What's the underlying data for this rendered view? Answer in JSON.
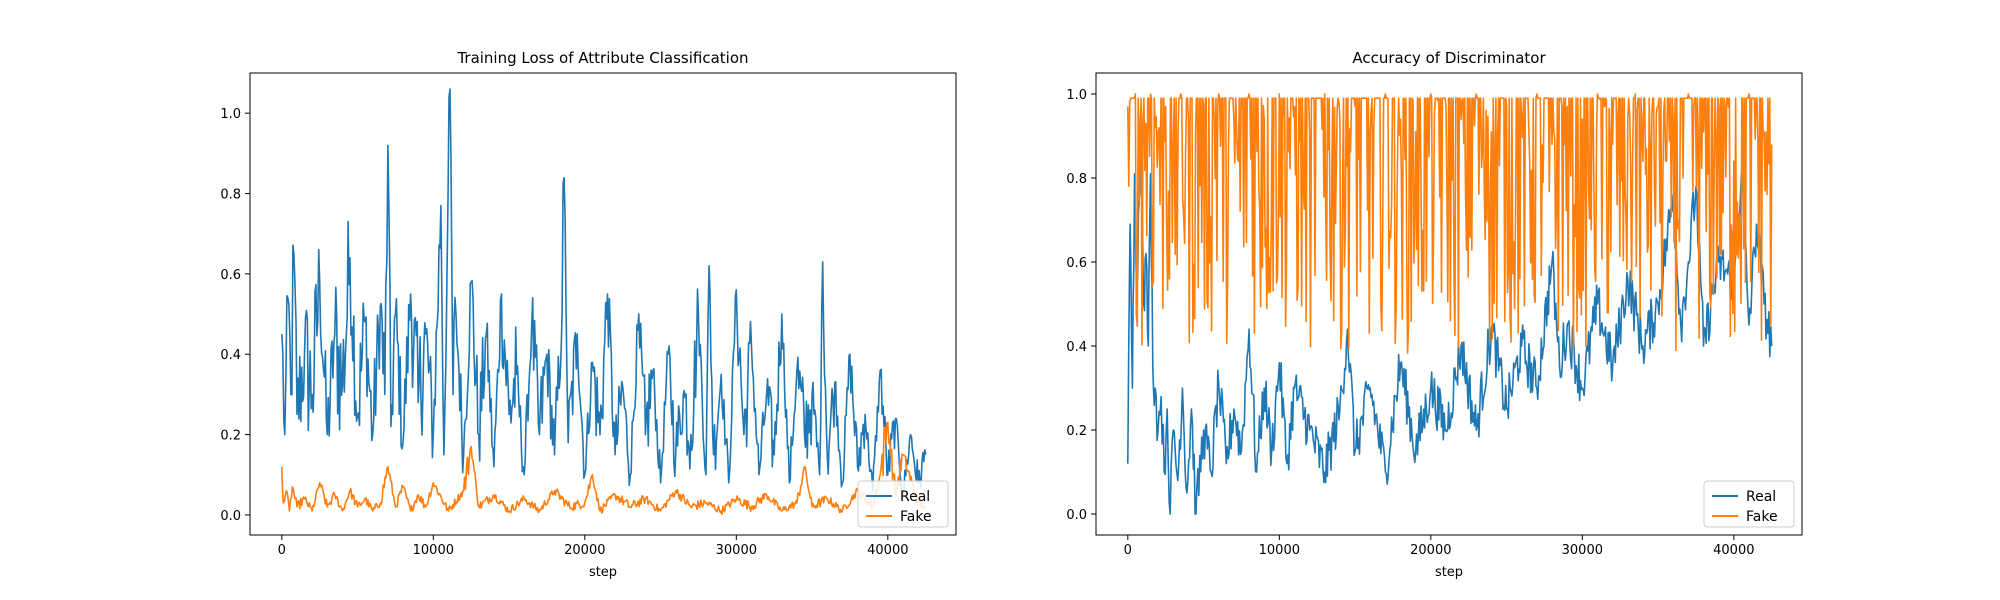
{
  "chart_data": [
    {
      "type": "line",
      "title": "Training Loss of Attribute Classification",
      "xlabel": "step",
      "ylabel": "",
      "xlim": [
        -2100,
        44500
      ],
      "ylim": [
        -0.05,
        1.1
      ],
      "xticks": [
        0,
        10000,
        20000,
        30000,
        40000
      ],
      "xtick_labels": [
        "0",
        "10000",
        "20000",
        "30000",
        "40000"
      ],
      "yticks": [
        0.0,
        0.2,
        0.4,
        0.6,
        0.8,
        1.0
      ],
      "ytick_labels": [
        "0.0",
        "0.2",
        "0.4",
        "0.6",
        "0.8",
        "1.0"
      ],
      "grid": false,
      "legend": "lower right",
      "series": [
        {
          "name": "Real",
          "color": "#1f77b4",
          "x": [
            0,
            200,
            400,
            600,
            800,
            1000,
            1500,
            2000,
            2500,
            3000,
            3500,
            4000,
            4500,
            5000,
            5500,
            6000,
            6500,
            6800,
            7000,
            7200,
            7500,
            8000,
            8500,
            9000,
            9500,
            10000,
            10500,
            10700,
            10900,
            11100,
            11300,
            11500,
            12000,
            12500,
            13000,
            13500,
            14000,
            14500,
            15000,
            15500,
            16000,
            16500,
            17000,
            17500,
            18000,
            18500,
            18700,
            18900,
            19500,
            20000,
            20500,
            21000,
            21500,
            22000,
            22500,
            23000,
            23500,
            24000,
            24500,
            25000,
            25500,
            26000,
            26500,
            27000,
            27500,
            28000,
            28200,
            28500,
            29000,
            29500,
            30000,
            30500,
            31000,
            31500,
            32000,
            32500,
            33000,
            33500,
            34000,
            34500,
            35000,
            35500,
            35700,
            36000,
            36500,
            37000,
            37500,
            38000,
            38500,
            39000,
            39500,
            40000,
            40500,
            41000,
            41500,
            42000,
            42500
          ],
          "y": [
            0.45,
            0.2,
            0.54,
            0.3,
            0.65,
            0.25,
            0.4,
            0.3,
            0.58,
            0.2,
            0.45,
            0.32,
            0.64,
            0.25,
            0.48,
            0.2,
            0.52,
            0.3,
            0.92,
            0.22,
            0.5,
            0.18,
            0.55,
            0.28,
            0.45,
            0.2,
            0.77,
            0.15,
            0.6,
            1.06,
            0.3,
            0.5,
            0.15,
            0.58,
            0.2,
            0.45,
            0.12,
            0.55,
            0.25,
            0.35,
            0.1,
            0.48,
            0.2,
            0.4,
            0.15,
            0.5,
            0.74,
            0.18,
            0.45,
            0.1,
            0.38,
            0.2,
            0.55,
            0.15,
            0.32,
            0.1,
            0.46,
            0.2,
            0.36,
            0.08,
            0.4,
            0.15,
            0.3,
            0.2,
            0.5,
            0.1,
            0.62,
            0.15,
            0.35,
            0.08,
            0.56,
            0.2,
            0.42,
            0.1,
            0.3,
            0.15,
            0.5,
            0.08,
            0.36,
            0.2,
            0.3,
            0.1,
            0.63,
            0.15,
            0.33,
            0.08,
            0.4,
            0.12,
            0.25,
            0.06,
            0.36,
            0.1,
            0.24,
            0.05,
            0.2,
            0.08,
            0.15
          ]
        },
        {
          "name": "Fake",
          "color": "#ff7f0e",
          "x": [
            0,
            100,
            300,
            500,
            700,
            1000,
            1500,
            2000,
            2500,
            3000,
            3500,
            4000,
            4500,
            5000,
            5500,
            6000,
            6500,
            7000,
            7500,
            8000,
            8500,
            9000,
            9500,
            10000,
            11000,
            12000,
            12500,
            13000,
            14000,
            15000,
            16000,
            17000,
            18000,
            19000,
            20000,
            20500,
            21000,
            22000,
            23000,
            24000,
            25000,
            26000,
            27000,
            28000,
            29000,
            30000,
            31000,
            32000,
            33000,
            34000,
            34500,
            35000,
            36000,
            37000,
            38000,
            39000,
            39500,
            40000,
            40500,
            41000,
            42000,
            42500
          ],
          "y": [
            0.12,
            0.03,
            0.06,
            0.01,
            0.07,
            0.02,
            0.04,
            0.01,
            0.08,
            0.02,
            0.05,
            0.01,
            0.06,
            0.02,
            0.04,
            0.01,
            0.03,
            0.12,
            0.02,
            0.07,
            0.01,
            0.05,
            0.02,
            0.08,
            0.01,
            0.06,
            0.17,
            0.02,
            0.05,
            0.01,
            0.04,
            0.01,
            0.06,
            0.02,
            0.03,
            0.1,
            0.01,
            0.05,
            0.02,
            0.04,
            0.01,
            0.06,
            0.02,
            0.03,
            0.01,
            0.04,
            0.02,
            0.05,
            0.01,
            0.03,
            0.12,
            0.02,
            0.04,
            0.01,
            0.06,
            0.02,
            0.1,
            0.23,
            0.05,
            0.15,
            0.03,
            0.02
          ]
        }
      ]
    },
    {
      "type": "line",
      "title": "Accuracy of Discriminator",
      "xlabel": "step",
      "ylabel": "",
      "xlim": [
        -2100,
        44500
      ],
      "ylim": [
        -0.05,
        1.05
      ],
      "xticks": [
        0,
        10000,
        20000,
        30000,
        40000
      ],
      "xtick_labels": [
        "0",
        "10000",
        "20000",
        "30000",
        "40000"
      ],
      "yticks": [
        0.0,
        0.2,
        0.4,
        0.6,
        0.8,
        1.0
      ],
      "ytick_labels": [
        "0.0",
        "0.2",
        "0.4",
        "0.6",
        "0.8",
        "1.0"
      ],
      "grid": false,
      "legend": "lower right",
      "series": [
        {
          "name": "Real",
          "color": "#1f77b4",
          "x": [
            0,
            150,
            300,
            450,
            600,
            750,
            900,
            1050,
            1200,
            1350,
            1500,
            1650,
            1800,
            2000,
            2200,
            2400,
            2600,
            2800,
            3000,
            3300,
            3600,
            3900,
            4200,
            4500,
            5000,
            5500,
            6000,
            6500,
            7000,
            7500,
            8000,
            8500,
            9000,
            9500,
            10000,
            10500,
            11000,
            12000,
            13000,
            14000,
            14500,
            15000,
            16000,
            17000,
            18000,
            19000,
            20000,
            21000,
            22000,
            23000,
            24000,
            25000,
            26000,
            27000,
            28000,
            28500,
            29000,
            30000,
            31000,
            32000,
            33000,
            34000,
            35000,
            36000,
            36500,
            37000,
            37500,
            38000,
            39000,
            40000,
            40500,
            41000,
            41500,
            42000,
            42500
          ],
          "y": [
            0.12,
            0.69,
            0.3,
            0.81,
            0.55,
            0.75,
            0.94,
            0.5,
            0.62,
            0.4,
            0.81,
            0.35,
            0.3,
            0.2,
            0.28,
            0.1,
            0.25,
            0.0,
            0.2,
            0.08,
            0.3,
            0.05,
            0.25,
            0.0,
            0.2,
            0.1,
            0.31,
            0.12,
            0.25,
            0.15,
            0.44,
            0.1,
            0.3,
            0.15,
            0.36,
            0.12,
            0.3,
            0.2,
            0.1,
            0.25,
            0.44,
            0.15,
            0.3,
            0.1,
            0.36,
            0.15,
            0.3,
            0.2,
            0.4,
            0.2,
            0.44,
            0.25,
            0.4,
            0.3,
            0.6,
            0.35,
            0.45,
            0.3,
            0.5,
            0.35,
            0.56,
            0.4,
            0.5,
            0.76,
            0.45,
            0.6,
            0.78,
            0.4,
            0.6,
            0.55,
            0.81,
            0.45,
            0.69,
            0.5,
            0.4
          ],
          "noise": 0.06
        },
        {
          "name": "Fake",
          "color": "#ff7f0e",
          "x": [
            0,
            500,
            1000,
            1500,
            2000,
            2500,
            3000,
            3500,
            4000,
            5000,
            6000,
            7000,
            7300,
            8000,
            9000,
            10000,
            11000,
            12000,
            13000,
            14000,
            15000,
            16000,
            17000,
            18000,
            19000,
            20000,
            21000,
            22000,
            23000,
            24000,
            25000,
            26000,
            27000,
            28000,
            29000,
            30000,
            31000,
            32000,
            33000,
            33500,
            34000,
            35000,
            35500,
            36000,
            37000,
            38000,
            39000,
            40000,
            41000,
            42000,
            42500
          ],
          "y": [
            0.97,
            1.0,
            0.94,
            1.0,
            0.91,
            0.97,
            0.88,
            1.0,
            0.94,
            0.97,
            1.0,
            0.94,
            0.84,
            1.0,
            0.94,
            1.0,
            0.97,
            0.91,
            1.0,
            0.94,
            0.97,
            0.91,
            1.0,
            0.94,
            0.91,
            1.0,
            0.97,
            0.94,
            1.0,
            0.91,
            0.97,
            0.94,
            1.0,
            0.88,
            0.97,
            0.94,
            1.0,
            0.88,
            0.94,
            1.0,
            0.84,
            0.97,
            0.84,
            0.94,
            1.0,
            0.91,
            0.97,
            0.84,
            1.0,
            0.91,
            0.88
          ]
        }
      ]
    }
  ]
}
